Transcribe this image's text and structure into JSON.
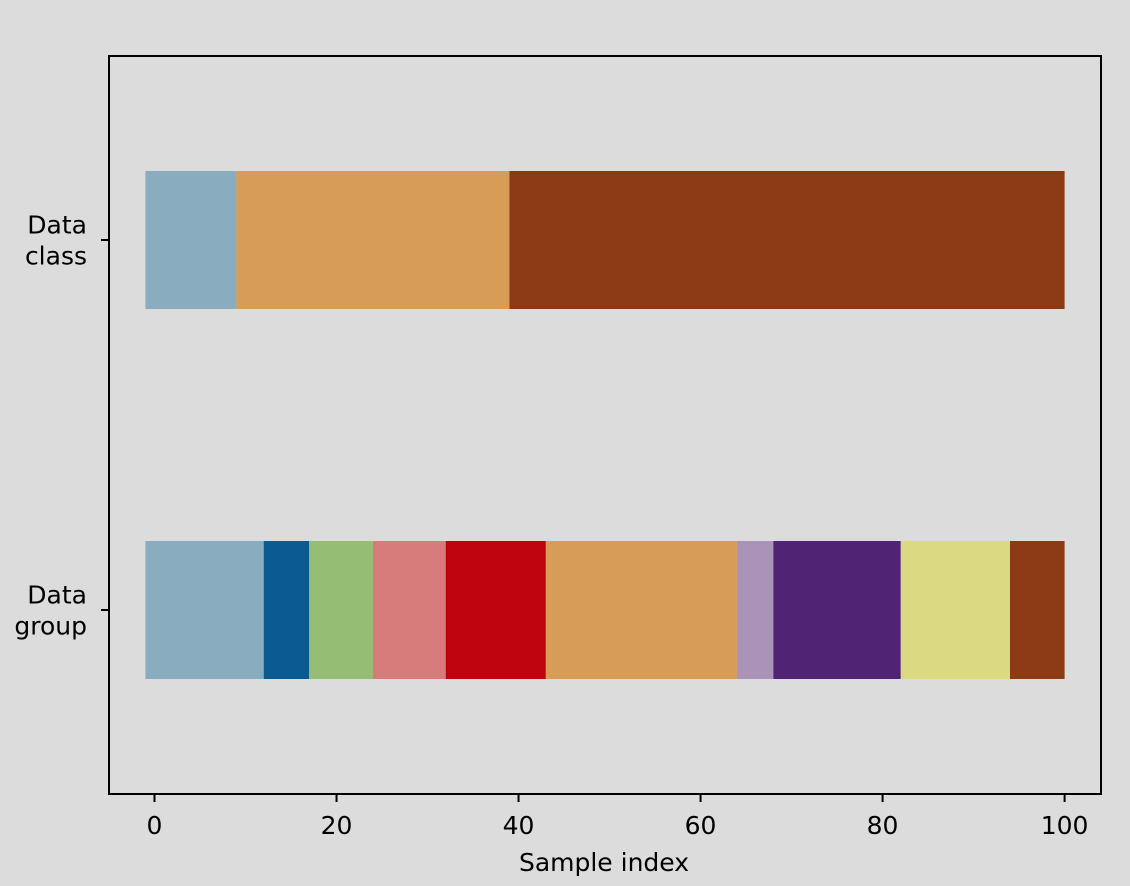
{
  "chart_data": {
    "type": "bar",
    "orientation": "horizontal",
    "xlabel": "Sample index",
    "xlim": [
      -5,
      104
    ],
    "xticks": [
      0,
      20,
      40,
      60,
      80,
      100
    ],
    "grid": false,
    "rows": [
      {
        "label": "Data class",
        "label_lines": [
          "Data",
          "class"
        ],
        "segments": [
          {
            "start": -1,
            "end": 9,
            "color": "#8aacbf"
          },
          {
            "start": 9,
            "end": 39,
            "color": "#d89c59"
          },
          {
            "start": 39,
            "end": 100,
            "color": "#8b3a14"
          }
        ]
      },
      {
        "label": "Data group",
        "label_lines": [
          "Data",
          "group"
        ],
        "segments": [
          {
            "start": -1,
            "end": 12,
            "color": "#8aacbf"
          },
          {
            "start": 12,
            "end": 17,
            "color": "#0b5a91"
          },
          {
            "start": 17,
            "end": 24,
            "color": "#95bd73"
          },
          {
            "start": 24,
            "end": 32,
            "color": "#d67a7a"
          },
          {
            "start": 32,
            "end": 43,
            "color": "#bd040e"
          },
          {
            "start": 43,
            "end": 64,
            "color": "#d89c59"
          },
          {
            "start": 64,
            "end": 68,
            "color": "#aa92b9"
          },
          {
            "start": 68,
            "end": 82,
            "color": "#512375"
          },
          {
            "start": 82,
            "end": 94,
            "color": "#dcd983"
          },
          {
            "start": 94,
            "end": 100,
            "color": "#8b3a14"
          }
        ]
      }
    ]
  }
}
